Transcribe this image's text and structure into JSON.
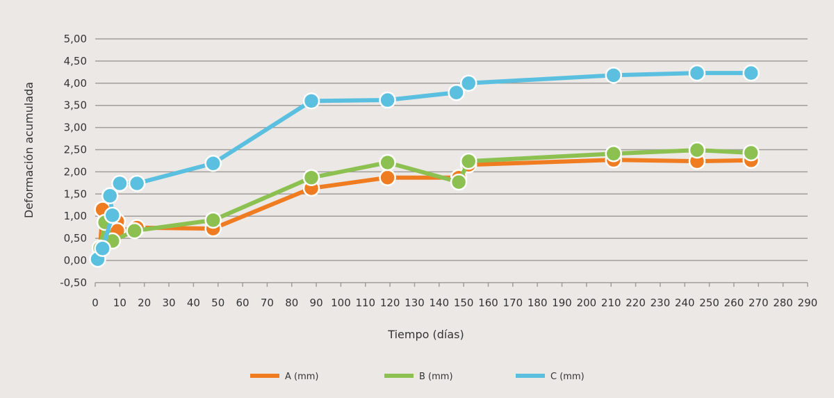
{
  "chart_data": {
    "type": "line",
    "title": "",
    "xlabel": "Tiempo (días)",
    "ylabel": "Deformación acumulada",
    "xlim": [
      0,
      290
    ],
    "ylim": [
      -0.5,
      5.0
    ],
    "xticks": [
      0,
      10,
      20,
      30,
      40,
      50,
      60,
      70,
      80,
      90,
      100,
      110,
      120,
      130,
      140,
      150,
      160,
      170,
      180,
      190,
      200,
      210,
      220,
      230,
      240,
      250,
      260,
      270,
      280,
      290
    ],
    "yticks": [
      "-0,50",
      "0,00",
      "0,50",
      "1,00",
      "1,50",
      "2,00",
      "2,50",
      "3,00",
      "3,50",
      "4,00",
      "4,50",
      "5,00"
    ],
    "grid": "horizontal",
    "legend_position": "bottom",
    "series": [
      {
        "name": "A (mm)",
        "color": "#f07c22",
        "x": [
          2,
          3,
          9,
          9,
          17,
          48,
          88,
          119,
          148,
          152,
          211,
          245,
          267
        ],
        "y": [
          0.28,
          1.15,
          0.88,
          0.67,
          0.74,
          0.72,
          1.63,
          1.87,
          1.87,
          2.16,
          2.27,
          2.24,
          2.26
        ]
      },
      {
        "name": "B (mm)",
        "color": "#8cc152",
        "x": [
          2,
          4,
          7,
          16,
          48,
          88,
          119,
          148,
          152,
          211,
          245,
          267
        ],
        "y": [
          0.28,
          0.86,
          0.44,
          0.67,
          0.91,
          1.87,
          2.21,
          1.77,
          2.24,
          2.41,
          2.49,
          2.43
        ]
      },
      {
        "name": "C (mm)",
        "color": "#5bc0e0",
        "x": [
          1,
          3,
          7,
          6,
          10,
          17,
          48,
          88,
          119,
          147,
          152,
          211,
          245,
          267
        ],
        "y": [
          0.03,
          0.27,
          1.02,
          1.46,
          1.74,
          1.74,
          2.19,
          3.6,
          3.62,
          3.79,
          4.0,
          4.18,
          4.23,
          4.23
        ]
      }
    ]
  }
}
